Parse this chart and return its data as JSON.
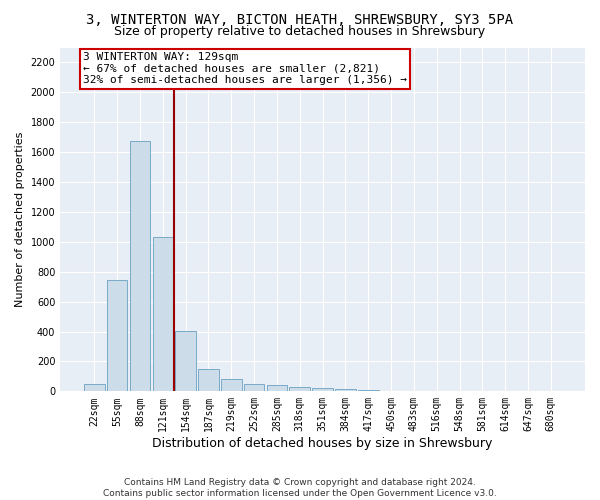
{
  "title_line1": "3, WINTERTON WAY, BICTON HEATH, SHREWSBURY, SY3 5PA",
  "title_line2": "Size of property relative to detached houses in Shrewsbury",
  "xlabel": "Distribution of detached houses by size in Shrewsbury",
  "ylabel": "Number of detached properties",
  "bar_labels": [
    "22sqm",
    "55sqm",
    "88sqm",
    "121sqm",
    "154sqm",
    "187sqm",
    "219sqm",
    "252sqm",
    "285sqm",
    "318sqm",
    "351sqm",
    "384sqm",
    "417sqm",
    "450sqm",
    "483sqm",
    "516sqm",
    "548sqm",
    "581sqm",
    "614sqm",
    "647sqm",
    "680sqm"
  ],
  "bar_values": [
    52,
    745,
    1672,
    1030,
    405,
    152,
    83,
    47,
    40,
    27,
    20,
    15,
    10,
    5,
    3,
    2,
    1,
    1,
    0,
    0,
    0
  ],
  "bar_color": "#ccdce8",
  "bar_edge_color": "#7aaac8",
  "vline_color": "#990000",
  "vline_x": 3.5,
  "annotation_text": "3 WINTERTON WAY: 129sqm\n← 67% of detached houses are smaller (2,821)\n32% of semi-detached houses are larger (1,356) →",
  "box_color": "#cc0000",
  "ylim": [
    0,
    2300
  ],
  "yticks": [
    0,
    200,
    400,
    600,
    800,
    1000,
    1200,
    1400,
    1600,
    1800,
    2000,
    2200
  ],
  "background_color": "#e8eef5",
  "grid_color": "#ffffff",
  "footer_text": "Contains HM Land Registry data © Crown copyright and database right 2024.\nContains public sector information licensed under the Open Government Licence v3.0.",
  "title_fontsize": 10,
  "subtitle_fontsize": 9,
  "ylabel_fontsize": 8,
  "xlabel_fontsize": 9,
  "tick_fontsize": 7,
  "annotation_fontsize": 8,
  "footer_fontsize": 6.5
}
